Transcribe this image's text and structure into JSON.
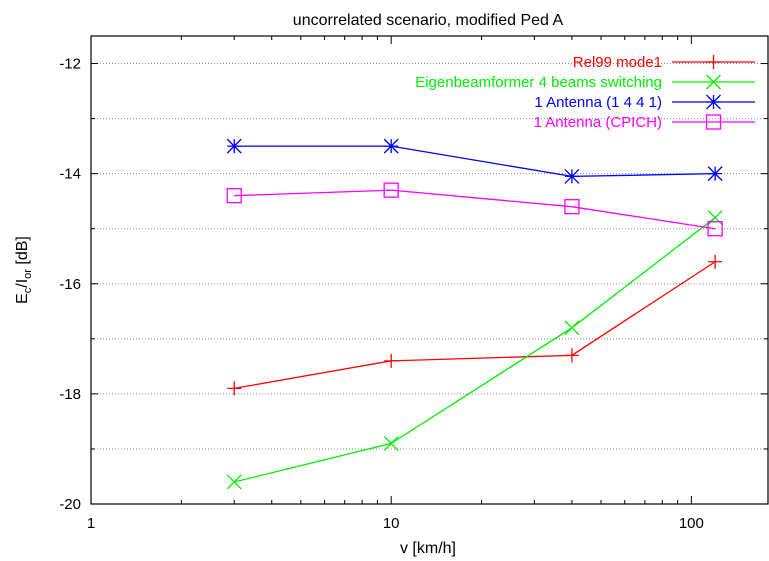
{
  "chart_data": {
    "type": "line",
    "title": "uncorrelated scenario, modified Ped A",
    "xlabel": "v [km/h]",
    "ylabel": {
      "main": "E",
      "sub1": "c",
      "mid": "/I",
      "sub2": "or",
      "tail": " [dB]"
    },
    "x_scale": "log",
    "xlim": [
      1,
      180
    ],
    "ylim": [
      -20,
      -11.5
    ],
    "x_ticks": [
      1,
      10,
      100
    ],
    "x_tick_labels": [
      "1",
      "10",
      "100"
    ],
    "y_ticks": [
      -20,
      -18,
      -16,
      -14,
      -12
    ],
    "y_tick_labels": [
      "-20",
      "-18",
      "-16",
      "-14",
      "-12"
    ],
    "grid": "horizontal dotted",
    "legend_position": "top-right",
    "series": [
      {
        "name": "Rel99 mode1",
        "color": "#ff0000",
        "marker": "plus",
        "x": [
          3,
          10,
          40,
          120
        ],
        "y": [
          -17.9,
          -17.4,
          -17.3,
          -15.6
        ]
      },
      {
        "name": "Eigenbeamformer 4 beams switching",
        "color": "#00ee00",
        "marker": "x",
        "x": [
          3,
          10,
          40,
          120
        ],
        "y": [
          -19.6,
          -18.9,
          -16.8,
          -14.8
        ]
      },
      {
        "name": "1 Antenna (1 4 4 1)",
        "color": "#0000ff",
        "marker": "star",
        "x": [
          3,
          10,
          40,
          120
        ],
        "y": [
          -13.5,
          -13.5,
          -14.05,
          -14.0
        ]
      },
      {
        "name": "1 Antenna (CPICH)",
        "color": "#ff00ff",
        "marker": "square",
        "x": [
          3,
          10,
          40,
          120
        ],
        "y": [
          -14.4,
          -14.3,
          -14.6,
          -15.0
        ]
      }
    ]
  }
}
